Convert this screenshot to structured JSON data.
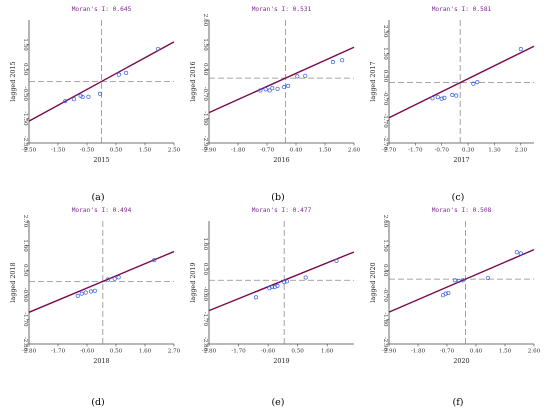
{
  "colors": {
    "fit_line": "#7b0a4d",
    "points": "#3a5ee8",
    "dashes": "#8a8a8a",
    "axes": "#444444",
    "moran_text": "#7a2a8c"
  },
  "chart_data": [
    {
      "type": "scatter",
      "panel": "(a)",
      "title": "Moran's I: 0.645",
      "xlabel": "2015",
      "ylabel": "lagged 2015",
      "xlim": [
        -2.5,
        2.5
      ],
      "ylim": [
        -2.5,
        2.5
      ],
      "xticks": [
        "-2.50",
        "-1.50",
        "-0.50",
        "0.50",
        "1.50",
        "2.50"
      ],
      "yticks": [
        "-2.50",
        "-1.50",
        "-0.50",
        "0.50",
        "1.50"
      ],
      "slope": 0.645,
      "points": [
        [
          -1.25,
          -0.8
        ],
        [
          -0.95,
          -0.72
        ],
        [
          -0.72,
          -0.58
        ],
        [
          -0.65,
          -0.63
        ],
        [
          -0.45,
          -0.62
        ],
        [
          -0.05,
          -0.5
        ],
        [
          0.6,
          0.28
        ],
        [
          0.85,
          0.35
        ],
        [
          1.95,
          1.32
        ]
      ]
    },
    {
      "type": "scatter",
      "panel": "(b)",
      "title": "Moran's I: 0.531",
      "xlabel": "2016",
      "ylabel": "lagged 2016",
      "xlim": [
        -2.9,
        2.6
      ],
      "ylim": [
        -2.9,
        2.6
      ],
      "xticks": [
        "-2.90",
        "-1.80",
        "-0.70",
        "0.40",
        "1.50",
        "2.60"
      ],
      "yticks": [
        "-2.90",
        "-1.80",
        "-0.70",
        "0.40",
        "1.50",
        "2.60"
      ],
      "slope": 0.531,
      "points": [
        [
          -0.95,
          -0.55
        ],
        [
          -0.75,
          -0.5
        ],
        [
          -0.6,
          -0.55
        ],
        [
          -0.5,
          -0.45
        ],
        [
          -0.3,
          -0.48
        ],
        [
          -0.05,
          -0.4
        ],
        [
          0.1,
          -0.35
        ],
        [
          0.45,
          0.08
        ],
        [
          0.75,
          0.1
        ],
        [
          1.8,
          0.72
        ],
        [
          2.15,
          0.8
        ]
      ]
    },
    {
      "type": "scatter",
      "panel": "(c)",
      "title": "Moran's I: 0.581",
      "xlabel": "2017",
      "ylabel": "lagged 2017",
      "xlim": [
        -2.7,
        2.8
      ],
      "ylim": [
        -2.7,
        2.8
      ],
      "xticks": [
        "-2.70",
        "-1.70",
        "-0.70",
        "0.30",
        "1.30",
        "2.30"
      ],
      "yticks": [
        "-2.70",
        "-1.70",
        "-0.70",
        "0.30",
        "1.30",
        "2.30"
      ],
      "slope": 0.581,
      "points": [
        [
          -1.05,
          -0.7
        ],
        [
          -0.85,
          -0.65
        ],
        [
          -0.7,
          -0.72
        ],
        [
          -0.6,
          -0.68
        ],
        [
          -0.3,
          -0.55
        ],
        [
          -0.15,
          -0.58
        ],
        [
          0.5,
          -0.05
        ],
        [
          0.65,
          0.02
        ],
        [
          2.3,
          1.5
        ]
      ]
    },
    {
      "type": "scatter",
      "panel": "(d)",
      "title": "Moran's I: 0.494",
      "xlabel": "2018",
      "ylabel": "lagged 2018",
      "xlim": [
        -2.8,
        2.7
      ],
      "ylim": [
        -2.8,
        2.7
      ],
      "xticks": [
        "-2.80",
        "-1.70",
        "-0.60",
        "0.50",
        "1.60",
        "2.70"
      ],
      "yticks": [
        "-2.80",
        "-1.70",
        "-0.60",
        "0.50",
        "1.60",
        "2.70"
      ],
      "slope": 0.494,
      "points": [
        [
          -0.95,
          -0.65
        ],
        [
          -0.8,
          -0.55
        ],
        [
          -0.65,
          -0.5
        ],
        [
          -0.45,
          -0.45
        ],
        [
          -0.3,
          -0.42
        ],
        [
          0.2,
          0.08
        ],
        [
          0.45,
          0.12
        ],
        [
          0.6,
          0.18
        ],
        [
          1.95,
          0.95
        ]
      ]
    },
    {
      "type": "scatter",
      "panel": "(e)",
      "title": "Moran's I: 0.477",
      "xlabel": "2019",
      "ylabel": "lagged 2019",
      "xlim": [
        -2.8,
        2.6
      ],
      "ylim": [
        -2.8,
        2.6
      ],
      "xticks": [
        "-2.80",
        "-1.70",
        "-0.60",
        "0.50",
        "1.60"
      ],
      "yticks": [
        "-2.80",
        "-1.70",
        "-0.60",
        "0.50",
        "1.60"
      ],
      "slope": 0.477,
      "points": [
        [
          -1.05,
          -0.75
        ],
        [
          -0.55,
          -0.35
        ],
        [
          -0.45,
          -0.3
        ],
        [
          -0.35,
          -0.3
        ],
        [
          -0.25,
          -0.25
        ],
        [
          0.0,
          -0.08
        ],
        [
          0.1,
          -0.05
        ],
        [
          0.8,
          0.12
        ],
        [
          1.95,
          0.85
        ]
      ]
    },
    {
      "type": "scatter",
      "panel": "(f)",
      "title": "Moran's I: 0.508",
      "xlabel": "2020",
      "ylabel": "lagged 2020",
      "xlim": [
        -2.9,
        2.6
      ],
      "ylim": [
        -2.9,
        2.6
      ],
      "xticks": [
        "-2.90",
        "-1.80",
        "-0.70",
        "0.40",
        "1.50",
        "2.60"
      ],
      "yticks": [
        "-2.90",
        "-1.80",
        "-0.70",
        "0.40",
        "1.50",
        "2.60"
      ],
      "slope": 0.508,
      "points": [
        [
          -0.85,
          -0.72
        ],
        [
          -0.75,
          -0.65
        ],
        [
          -0.65,
          -0.62
        ],
        [
          -0.4,
          -0.05
        ],
        [
          -0.25,
          -0.08
        ],
        [
          -0.1,
          -0.05
        ],
        [
          0.85,
          0.05
        ],
        [
          1.95,
          1.2
        ],
        [
          2.1,
          1.15
        ]
      ]
    }
  ]
}
